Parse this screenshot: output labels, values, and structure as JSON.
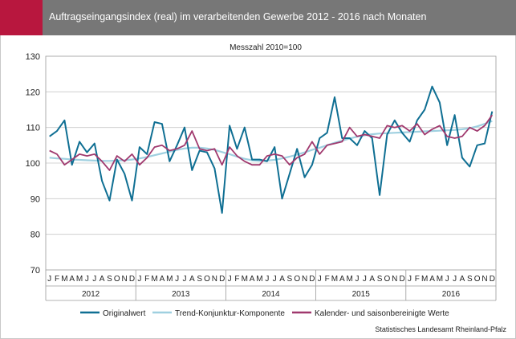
{
  "header": {
    "title": "Auftragseingangsindex (real) im verarbeitenden Gewerbe 2012 - 2016 nach Monaten",
    "accent_color": "#b8173e",
    "bar_color": "#777777"
  },
  "footer": {
    "source": "Statistisches Landesamt Rheinland-Pfalz"
  },
  "chart_data": {
    "type": "line",
    "subtitle": "Messzahl 2010=100",
    "ylim": [
      70,
      130
    ],
    "yticks": [
      70,
      80,
      90,
      100,
      110,
      120,
      130
    ],
    "grid": "horizontal",
    "legend_position": "bottom",
    "month_labels": [
      "J",
      "F",
      "M",
      "A",
      "M",
      "J",
      "J",
      "A",
      "S",
      "O",
      "N",
      "D"
    ],
    "years": [
      "2012",
      "2013",
      "2014",
      "2015",
      "2016"
    ],
    "series": [
      {
        "name": "Originalwert",
        "color": "#0f6f93",
        "values": [
          107.5,
          109,
          112,
          99.5,
          106,
          103,
          105.5,
          95,
          89.5,
          101,
          97,
          89.5,
          104.5,
          102.5,
          111.5,
          111,
          100.5,
          105,
          110,
          98,
          103.5,
          103,
          98.5,
          86,
          110.5,
          104,
          110,
          101,
          101,
          100.5,
          104.5,
          90,
          97,
          104,
          96,
          99.5,
          107,
          108.5,
          118.5,
          107,
          107,
          105,
          109,
          107,
          91,
          108,
          112,
          108.5,
          106,
          112,
          115,
          121.5,
          117,
          105,
          113.5,
          101.5,
          99,
          105,
          105.5,
          114.5
        ]
      },
      {
        "name": "Trend-Konjunktur-Komponente",
        "color": "#9fd0e0",
        "values": [
          101.5,
          101.3,
          101.2,
          101,
          100.9,
          100.8,
          100.7,
          100.6,
          100.6,
          100.7,
          100.8,
          101,
          101.3,
          101.7,
          102.2,
          102.7,
          103.2,
          103.7,
          104.1,
          104.3,
          104.3,
          104.1,
          103.7,
          103.1,
          102.5,
          101.8,
          101.2,
          100.8,
          100.6,
          100.7,
          100.9,
          101.3,
          101.8,
          102.4,
          103,
          103.7,
          104.3,
          105,
          105.7,
          106.3,
          106.9,
          107.4,
          107.8,
          108.1,
          108.3,
          108.4,
          108.5,
          108.6,
          108.7,
          108.8,
          108.9,
          109,
          109.1,
          109.2,
          109.3,
          109.5,
          109.8,
          110.3,
          111,
          111.8
        ]
      },
      {
        "name": "Kalender- und saisonbereinigte Werte",
        "color": "#a0396e",
        "values": [
          103.5,
          102.5,
          99.5,
          101,
          102.5,
          102,
          102.5,
          100.5,
          98,
          102,
          100.5,
          102.5,
          99.5,
          101.5,
          104.5,
          105,
          103.5,
          104,
          105,
          109,
          104,
          103.5,
          104,
          99.5,
          104.5,
          102,
          100.5,
          99.5,
          99.5,
          102,
          102.5,
          102,
          99.5,
          101.5,
          102.5,
          106,
          102.5,
          105,
          105.5,
          106,
          110,
          107.5,
          108,
          107.5,
          107,
          110.5,
          110,
          110.5,
          109,
          111,
          108,
          109.5,
          110.5,
          107.5,
          107,
          107.5,
          110,
          109,
          110.5,
          113.5
        ]
      }
    ]
  }
}
